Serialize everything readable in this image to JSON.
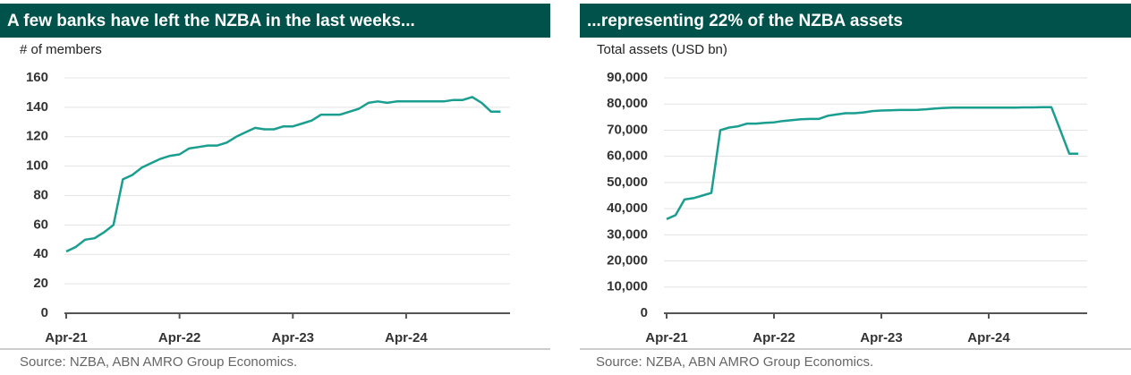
{
  "chart_data": [
    {
      "type": "line",
      "title": "A few banks have left the NZBA in the last weeks...",
      "y_label": "# of members",
      "source": "Source: NZBA, ABN AMRO Group Economics.",
      "x": [
        "2021-04",
        "2021-05",
        "2021-06",
        "2021-07",
        "2021-08",
        "2021-09",
        "2021-10",
        "2021-11",
        "2021-12",
        "2022-01",
        "2022-02",
        "2022-03",
        "2022-04",
        "2022-05",
        "2022-06",
        "2022-07",
        "2022-08",
        "2022-09",
        "2022-10",
        "2022-11",
        "2022-12",
        "2023-01",
        "2023-02",
        "2023-03",
        "2023-04",
        "2023-05",
        "2023-06",
        "2023-07",
        "2023-08",
        "2023-09",
        "2023-10",
        "2023-11",
        "2023-12",
        "2024-01",
        "2024-02",
        "2024-03",
        "2024-04",
        "2024-05",
        "2024-06",
        "2024-07",
        "2024-08",
        "2024-09",
        "2024-10",
        "2024-11",
        "2024-12",
        "2025-01",
        "2025-02"
      ],
      "series": [
        {
          "name": "Members",
          "color": "#1a9e8f",
          "values": [
            42,
            45,
            50,
            51,
            55,
            60,
            91,
            94,
            99,
            102,
            105,
            107,
            108,
            112,
            113,
            114,
            114,
            116,
            120,
            123,
            126,
            125,
            125,
            127,
            127,
            129,
            131,
            135,
            135,
            135,
            137,
            139,
            143,
            144,
            143,
            144,
            144,
            144,
            144,
            144,
            144,
            145,
            145,
            147,
            143,
            137,
            137
          ]
        }
      ],
      "xlim": [
        "2021-04",
        "2025-03"
      ],
      "xticks": [
        {
          "value": "2021-04",
          "label": "Apr-21"
        },
        {
          "value": "2022-04",
          "label": "Apr-22"
        },
        {
          "value": "2023-04",
          "label": "Apr-23"
        },
        {
          "value": "2024-04",
          "label": "Apr-24"
        }
      ],
      "ylim": [
        0,
        160
      ],
      "yticks": [
        0,
        20,
        40,
        60,
        80,
        100,
        120,
        140,
        160
      ],
      "grid": true
    },
    {
      "type": "line",
      "title": "...representing 22% of the NZBA assets",
      "y_label": "Total assets (USD bn)",
      "source": "Source: NZBA, ABN AMRO Group Economics.",
      "x": [
        "2021-04",
        "2021-05",
        "2021-06",
        "2021-07",
        "2021-08",
        "2021-09",
        "2021-10",
        "2021-11",
        "2021-12",
        "2022-01",
        "2022-02",
        "2022-03",
        "2022-04",
        "2022-05",
        "2022-06",
        "2022-07",
        "2022-08",
        "2022-09",
        "2022-10",
        "2022-11",
        "2022-12",
        "2023-01",
        "2023-02",
        "2023-03",
        "2023-04",
        "2023-05",
        "2023-06",
        "2023-07",
        "2023-08",
        "2023-09",
        "2023-10",
        "2023-11",
        "2023-12",
        "2024-01",
        "2024-02",
        "2024-03",
        "2024-04",
        "2024-05",
        "2024-06",
        "2024-07",
        "2024-08",
        "2024-09",
        "2024-10",
        "2024-11",
        "2024-12",
        "2025-01",
        "2025-02"
      ],
      "series": [
        {
          "name": "Total assets",
          "color": "#1a9e8f",
          "values": [
            36000,
            37500,
            43500,
            44000,
            45000,
            46000,
            70000,
            71000,
            71500,
            72500,
            72500,
            72800,
            73000,
            73500,
            73800,
            74200,
            74300,
            74300,
            75500,
            76000,
            76500,
            76500,
            76800,
            77300,
            77500,
            77600,
            77700,
            77700,
            77800,
            78000,
            78300,
            78500,
            78600,
            78600,
            78600,
            78600,
            78600,
            78600,
            78600,
            78600,
            78700,
            78700,
            78800,
            78800,
            70000,
            61000,
            61000
          ]
        }
      ],
      "xlim": [
        "2021-04",
        "2025-03"
      ],
      "xticks": [
        {
          "value": "2021-04",
          "label": "Apr-21"
        },
        {
          "value": "2022-04",
          "label": "Apr-22"
        },
        {
          "value": "2023-04",
          "label": "Apr-23"
        },
        {
          "value": "2024-04",
          "label": "Apr-24"
        }
      ],
      "ylim": [
        0,
        90000
      ],
      "yticks": [
        0,
        {
          "value": 10000,
          "label": "10,000"
        },
        {
          "value": 20000,
          "label": "20,000"
        },
        {
          "value": 30000,
          "label": "30,000"
        },
        {
          "value": 40000,
          "label": "40,000"
        },
        {
          "value": 50000,
          "label": "50,000"
        },
        {
          "value": 60000,
          "label": "60,000"
        },
        {
          "value": 70000,
          "label": "70,000"
        },
        {
          "value": 80000,
          "label": "80,000"
        },
        {
          "value": 90000,
          "label": "90,000"
        }
      ],
      "grid": true
    }
  ]
}
